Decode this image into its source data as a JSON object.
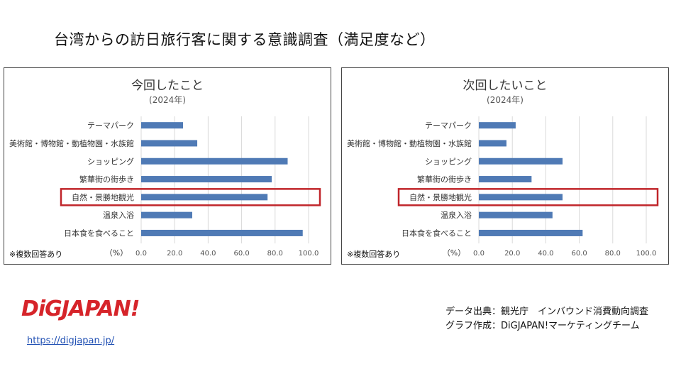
{
  "page": {
    "title": "台湾からの訪日旅行客に関する意識調査（満足度など）"
  },
  "chart_data": [
    {
      "type": "bar",
      "orientation": "horizontal",
      "title": "今回したこと",
      "subtitle": "(2024年)",
      "categories": [
        "テーマパーク",
        "美術館・博物館・動植物園・水族館",
        "ショッピング",
        "繁華街の街歩き",
        "自然・景勝地観光",
        "温泉入浴",
        "日本食を食べること"
      ],
      "values": [
        25.0,
        33.5,
        87.5,
        78.0,
        75.5,
        30.5,
        96.5
      ],
      "xlim": [
        0,
        100
      ],
      "xticks": [
        "0.0",
        "20.0",
        "40.0",
        "60.0",
        "80.0",
        "100.0"
      ],
      "xlabel": "（%）",
      "highlight_category": "自然・景勝地観光",
      "footnote": "※複数回答あり",
      "grid": true,
      "bar_color": "#4f7ab5",
      "highlight_color": "#c0252a"
    },
    {
      "type": "bar",
      "orientation": "horizontal",
      "title": "次回したいこと",
      "subtitle": "(2024年)",
      "categories": [
        "テーマパーク",
        "美術館・博物館・動植物園・水族館",
        "ショッピング",
        "繁華街の街歩き",
        "自然・景勝地観光",
        "温泉入浴",
        "日本食を食べること"
      ],
      "values": [
        22.0,
        16.5,
        50.0,
        31.5,
        50.0,
        44.0,
        62.0
      ],
      "xlim": [
        0,
        100
      ],
      "xticks": [
        "0.0",
        "20.0",
        "40.0",
        "60.0",
        "80.0",
        "100.0"
      ],
      "xlabel": "（%）",
      "highlight_category": "自然・景勝地観光",
      "footnote": "※複数回答あり",
      "grid": true,
      "bar_color": "#4f7ab5",
      "highlight_color": "#c0252a"
    }
  ],
  "logo": {
    "text": "DiGJAPAN!",
    "color": "#d6242a"
  },
  "link": {
    "text": "https://digjapan.jp/"
  },
  "source": {
    "line1": "データ出典：観光庁　インバウンド消費動向調査",
    "line2": "グラフ作成：DiGJAPAN!マーケティングチーム"
  }
}
